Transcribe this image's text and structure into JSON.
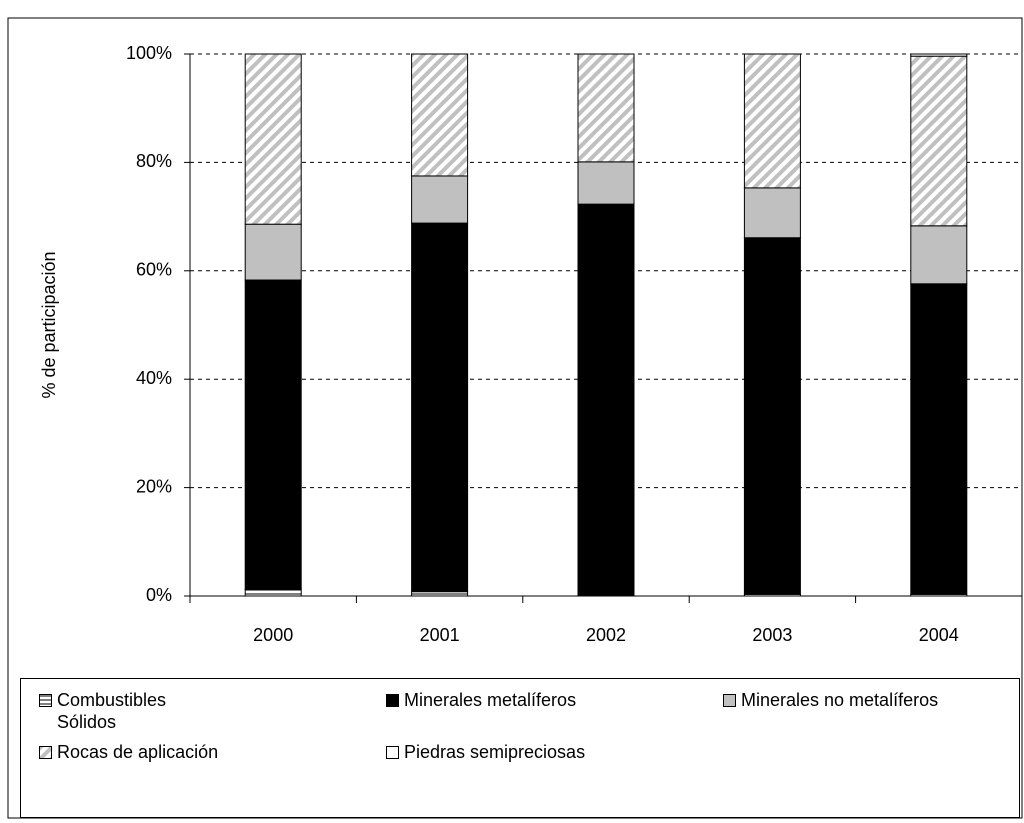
{
  "chart_data": {
    "type": "stacked_bar",
    "y_label": "% de participación",
    "categories": [
      "2000",
      "2001",
      "2002",
      "2003",
      "2004"
    ],
    "series": [
      {
        "name": "Combustibles Sólidos",
        "color": "#ffffff",
        "pattern": "horizontal",
        "values": [
          1.3,
          0.8,
          0.2,
          0.3,
          0.3
        ]
      },
      {
        "name": "Minerales metalíferos",
        "color": "#000000",
        "values": [
          57.0,
          68.0,
          72.1,
          65.8,
          57.3
        ]
      },
      {
        "name": "Minerales no metalíferos",
        "color": "#c0c0c0",
        "values": [
          10.3,
          8.7,
          7.8,
          9.2,
          10.7
        ]
      },
      {
        "name": "Rocas de aplicación",
        "color": "#c0c0c0",
        "pattern": "diagonal",
        "values": [
          31.4,
          22.5,
          19.9,
          24.7,
          31.3
        ]
      },
      {
        "name": "Piedras semipreciosas",
        "color": "#ffffff",
        "values": [
          0.0,
          0.0,
          0.0,
          0.0,
          0.4
        ]
      }
    ],
    "ylim": [
      0,
      100
    ],
    "yticks": [
      {
        "value": 0,
        "label": "0%"
      },
      {
        "value": 20,
        "label": "20%"
      },
      {
        "value": 40,
        "label": "40%"
      },
      {
        "value": 60,
        "label": "60%"
      },
      {
        "value": 80,
        "label": "80%"
      },
      {
        "value": 100,
        "label": "100%"
      }
    ],
    "grid": true
  }
}
